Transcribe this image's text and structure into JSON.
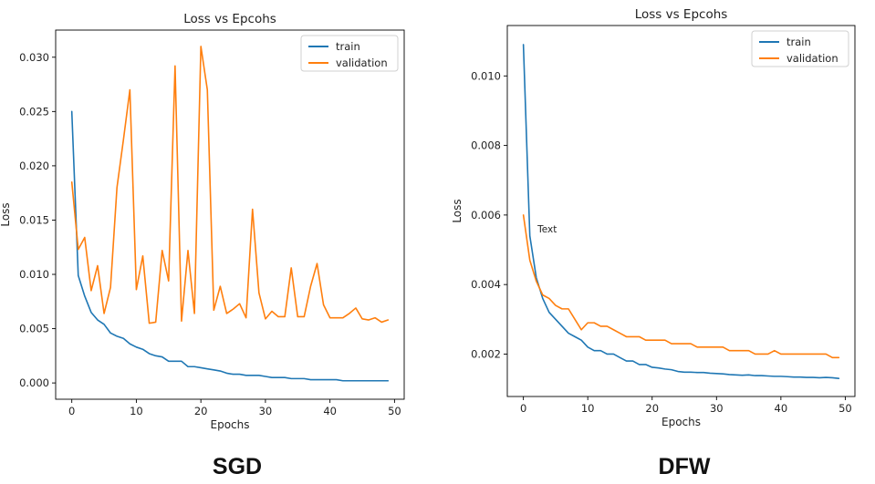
{
  "captions": {
    "left": "SGD",
    "right": "DFW"
  },
  "chart_data": [
    {
      "type": "line",
      "title": "Loss vs Epcohs",
      "xlabel": "Epochs",
      "ylabel": "Loss",
      "xlim": [
        -2.5,
        51.5
      ],
      "ylim": [
        -0.0015,
        0.0325
      ],
      "xticks": [
        0,
        10,
        20,
        30,
        40,
        50
      ],
      "xtick_labels": [
        "0",
        "10",
        "20",
        "30",
        "40",
        "50"
      ],
      "yticks": [
        0,
        0.005,
        0.01,
        0.015,
        0.02,
        0.025,
        0.03
      ],
      "ytick_labels": [
        "0.000",
        "0.005",
        "0.010",
        "0.015",
        "0.020",
        "0.025",
        "0.030"
      ],
      "grid": false,
      "legend": "top-right",
      "x": [
        0,
        1,
        2,
        3,
        4,
        5,
        6,
        7,
        8,
        9,
        10,
        11,
        12,
        13,
        14,
        15,
        16,
        17,
        18,
        19,
        20,
        21,
        22,
        23,
        24,
        25,
        26,
        27,
        28,
        29,
        30,
        31,
        32,
        33,
        34,
        35,
        36,
        37,
        38,
        39,
        40,
        41,
        42,
        43,
        44,
        45,
        46,
        47,
        48,
        49
      ],
      "series": [
        {
          "name": "train",
          "color": "#1f77b4",
          "values": [
            0.025,
            0.0099,
            0.008,
            0.0065,
            0.0058,
            0.0054,
            0.0046,
            0.0043,
            0.0041,
            0.0036,
            0.0033,
            0.0031,
            0.0027,
            0.0025,
            0.0024,
            0.002,
            0.002,
            0.002,
            0.0015,
            0.0015,
            0.0014,
            0.0013,
            0.0012,
            0.0011,
            0.0009,
            0.0008,
            0.0008,
            0.0007,
            0.0007,
            0.0007,
            0.0006,
            0.0005,
            0.0005,
            0.0005,
            0.0004,
            0.0004,
            0.0004,
            0.0003,
            0.0003,
            0.0003,
            0.0003,
            0.0003,
            0.0002,
            0.0002,
            0.0002,
            0.0002,
            0.0002,
            0.0002,
            0.0002,
            0.0002
          ]
        },
        {
          "name": "validation",
          "color": "#ff7f0e",
          "values": [
            0.0185,
            0.0123,
            0.0134,
            0.0085,
            0.0108,
            0.0064,
            0.0088,
            0.018,
            0.0224,
            0.027,
            0.0086,
            0.0117,
            0.0055,
            0.0056,
            0.0122,
            0.0094,
            0.0292,
            0.0057,
            0.0122,
            0.0064,
            0.031,
            0.027,
            0.0067,
            0.0089,
            0.0064,
            0.0068,
            0.0073,
            0.006,
            0.016,
            0.0083,
            0.0059,
            0.0066,
            0.0061,
            0.0061,
            0.0106,
            0.0061,
            0.0061,
            0.0089,
            0.011,
            0.0072,
            0.006,
            0.006,
            0.006,
            0.0064,
            0.0069,
            0.0059,
            0.0058,
            0.006,
            0.0056,
            0.0058
          ]
        }
      ]
    },
    {
      "type": "line",
      "title": "Loss vs Epcohs",
      "xlabel": "Epochs",
      "ylabel": "Loss",
      "annotation": "Text",
      "annotation_at": [
        2.2,
        0.0055
      ],
      "xlim": [
        -2.5,
        51.5
      ],
      "ylim": [
        0.00078,
        0.01145
      ],
      "xticks": [
        0,
        10,
        20,
        30,
        40,
        50
      ],
      "xtick_labels": [
        "0",
        "10",
        "20",
        "30",
        "40",
        "50"
      ],
      "yticks": [
        0.002,
        0.004,
        0.006,
        0.008,
        0.01
      ],
      "ytick_labels": [
        "0.002",
        "0.004",
        "0.006",
        "0.008",
        "0.010"
      ],
      "grid": false,
      "legend": "top-right",
      "x": [
        0,
        1,
        2,
        3,
        4,
        5,
        6,
        7,
        8,
        9,
        10,
        11,
        12,
        13,
        14,
        15,
        16,
        17,
        18,
        19,
        20,
        21,
        22,
        23,
        24,
        25,
        26,
        27,
        28,
        29,
        30,
        31,
        32,
        33,
        34,
        35,
        36,
        37,
        38,
        39,
        40,
        41,
        42,
        43,
        44,
        45,
        46,
        47,
        48,
        49
      ],
      "series": [
        {
          "name": "train",
          "color": "#1f77b4",
          "values": [
            0.0109,
            0.0054,
            0.0042,
            0.0036,
            0.0032,
            0.003,
            0.0028,
            0.0026,
            0.0025,
            0.0024,
            0.0022,
            0.0021,
            0.0021,
            0.002,
            0.002,
            0.0019,
            0.0018,
            0.0018,
            0.0017,
            0.0017,
            0.00162,
            0.0016,
            0.00157,
            0.00155,
            0.0015,
            0.00148,
            0.00148,
            0.00147,
            0.00147,
            0.00145,
            0.00144,
            0.00143,
            0.00141,
            0.0014,
            0.00139,
            0.0014,
            0.00138,
            0.00138,
            0.00137,
            0.00136,
            0.00136,
            0.00135,
            0.00134,
            0.00134,
            0.00133,
            0.00133,
            0.00132,
            0.00133,
            0.00132,
            0.0013
          ]
        },
        {
          "name": "validation",
          "color": "#ff7f0e",
          "values": [
            0.006,
            0.0047,
            0.0041,
            0.0037,
            0.0036,
            0.0034,
            0.0033,
            0.0033,
            0.003,
            0.0027,
            0.0029,
            0.0029,
            0.0028,
            0.0028,
            0.0027,
            0.0026,
            0.0025,
            0.0025,
            0.0025,
            0.0024,
            0.0024,
            0.0024,
            0.0024,
            0.0023,
            0.0023,
            0.0023,
            0.0023,
            0.0022,
            0.0022,
            0.0022,
            0.0022,
            0.0022,
            0.0021,
            0.0021,
            0.0021,
            0.0021,
            0.002,
            0.002,
            0.002,
            0.0021,
            0.002,
            0.002,
            0.002,
            0.002,
            0.002,
            0.002,
            0.002,
            0.002,
            0.0019,
            0.0019
          ]
        }
      ]
    }
  ]
}
